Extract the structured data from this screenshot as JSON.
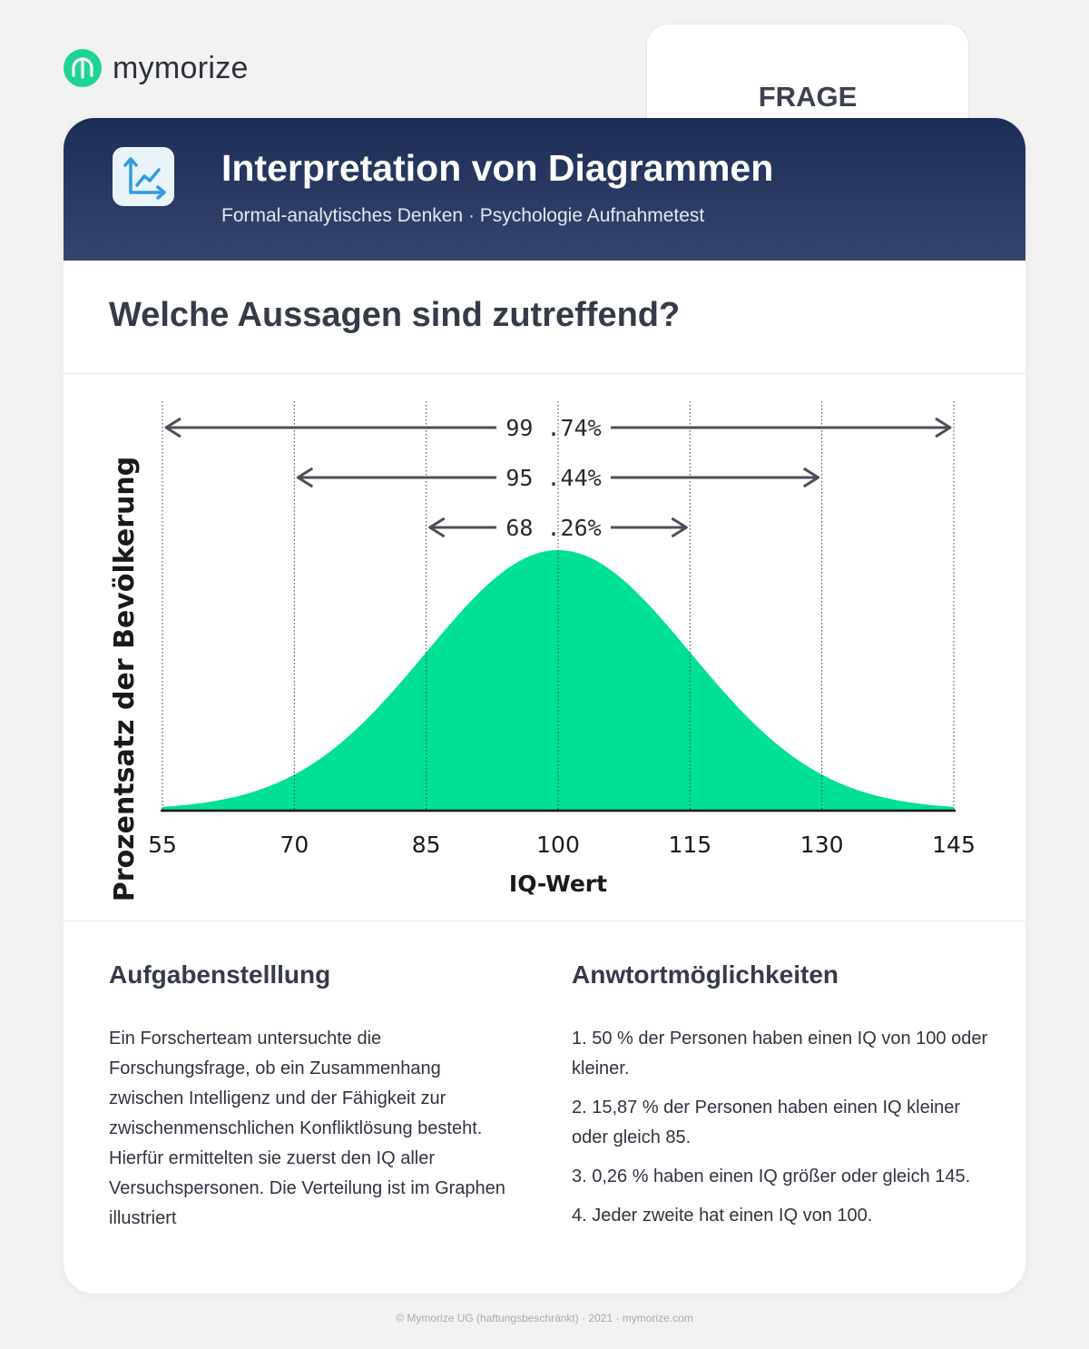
{
  "brand": {
    "name": "mymorize"
  },
  "tab": {
    "label": "FRAGE"
  },
  "header": {
    "title": "Interpretation von Diagrammen",
    "subtitle": "Formal-analytisches Denken · Psychologie Aufnahmetest"
  },
  "question": "Welche Aussagen sind zutreffend?",
  "task": {
    "heading": "Aufgabenstelllung",
    "text": "Ein Forscherteam untersuchte die Forschungsfrage, ob ein Zusammenhang zwischen Intelligenz und der Fähigkeit zur zwischenmenschlichen Konfliktlösung besteht. Hierfür ermittelten sie zuerst den IQ aller Versuchspersonen. Die Verteilung ist im Graphen illustriert"
  },
  "answers": {
    "heading": "Anwtortmöglichkeiten",
    "items": [
      "1. 50 % der Personen haben einen IQ von 100 oder kleiner.",
      "2. 15,87 % der Personen haben einen IQ kleiner oder gleich 85.",
      "3. 0,26 % haben einen IQ größer oder gleich 145.",
      "4. Jeder zweite hat einen IQ von 100."
    ]
  },
  "footer": "© Mymorize UG (haftungsbeschränkt) · 2021 · mymorize.com",
  "chart_data": {
    "type": "area",
    "title": "",
    "xlabel": "IQ-Wert",
    "ylabel": "Prozentsatz der Bevölkerung",
    "x_ticks": [
      55,
      70,
      85,
      100,
      115,
      130,
      145
    ],
    "xlim": [
      55,
      145
    ],
    "distribution": {
      "kind": "normal",
      "mean": 100,
      "sd": 15
    },
    "fill_color": "#00e096",
    "ranges": [
      {
        "from": 55,
        "to": 145,
        "label": "99 .74%"
      },
      {
        "from": 70,
        "to": 130,
        "label": "95 .44%"
      },
      {
        "from": 85,
        "to": 115,
        "label": "68 .26%"
      }
    ]
  }
}
